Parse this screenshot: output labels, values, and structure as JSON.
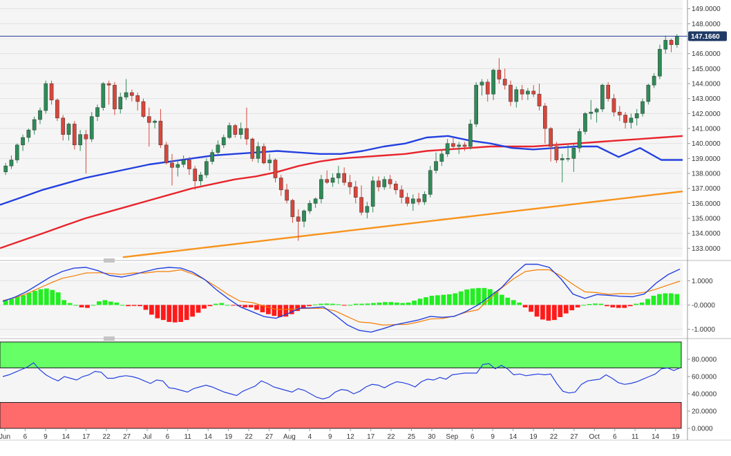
{
  "chart_data": [
    {
      "type": "candlestick",
      "panel": "price",
      "yticks": [
        133,
        134,
        135,
        136,
        137,
        138,
        139,
        140,
        141,
        142,
        143,
        144,
        145,
        146,
        147,
        148,
        149
      ],
      "ytick_labels": [
        "133.0000",
        "134.0000",
        "135.0000",
        "136.0000",
        "137.0000",
        "138.0000",
        "139.0000",
        "140.0000",
        "141.0000",
        "142.0000",
        "143.0000",
        "144.0000",
        "145.0000",
        "146.0000",
        "147.0000",
        "148.0000",
        "149.0000"
      ],
      "ylim": [
        132.6,
        149.4
      ],
      "current_price": 147.166,
      "current_price_label": "147.1660",
      "colors": {
        "up": "#2e8b57",
        "down": "#d9463b",
        "sma_fast": "#2340e0",
        "sma_mid": "#e8242c",
        "sma_slow": "#f7941d",
        "price_line": "#1f3a93"
      },
      "candles": [
        [
          138.1,
          138.7,
          137.9,
          138.5
        ],
        [
          138.5,
          139.2,
          138.3,
          138.9
        ],
        [
          138.9,
          140.0,
          138.7,
          139.9
        ],
        [
          139.9,
          140.6,
          139.5,
          140.4
        ],
        [
          140.4,
          141.0,
          140.1,
          140.9
        ],
        [
          140.9,
          141.8,
          140.6,
          141.6
        ],
        [
          141.6,
          142.4,
          141.3,
          142.2
        ],
        [
          142.2,
          144.2,
          142.0,
          144.0
        ],
        [
          144.0,
          144.2,
          142.6,
          142.9
        ],
        [
          142.9,
          143.0,
          141.5,
          141.7
        ],
        [
          141.7,
          141.9,
          140.2,
          140.6
        ],
        [
          140.6,
          141.4,
          140.2,
          141.3
        ],
        [
          141.3,
          141.5,
          139.6,
          139.9
        ],
        [
          139.9,
          140.9,
          139.5,
          140.6
        ],
        [
          140.6,
          140.9,
          138.0,
          140.3
        ],
        [
          140.3,
          142.1,
          140.1,
          141.8
        ],
        [
          141.8,
          142.6,
          141.5,
          142.4
        ],
        [
          142.4,
          144.1,
          142.2,
          144.0
        ],
        [
          144.0,
          144.2,
          142.6,
          143.9
        ],
        [
          143.9,
          144.1,
          141.9,
          142.3
        ],
        [
          142.3,
          143.4,
          142.0,
          143.1
        ],
        [
          143.1,
          144.3,
          142.9,
          143.4
        ],
        [
          143.4,
          143.6,
          142.8,
          143.2
        ],
        [
          143.2,
          143.4,
          142.2,
          142.8
        ],
        [
          142.8,
          143.0,
          141.7,
          141.8
        ],
        [
          141.8,
          142.4,
          139.8,
          141.4
        ],
        [
          141.4,
          141.6,
          141.0,
          141.5
        ],
        [
          141.5,
          142.3,
          139.7,
          139.9
        ],
        [
          139.9,
          140.1,
          138.6,
          138.7
        ],
        [
          138.7,
          139.3,
          137.2,
          138.4
        ],
        [
          138.4,
          138.9,
          137.8,
          138.6
        ],
        [
          138.6,
          139.2,
          138.4,
          138.9
        ],
        [
          138.9,
          139.1,
          137.9,
          138.3
        ],
        [
          138.3,
          138.5,
          136.9,
          137.5
        ],
        [
          137.5,
          138.1,
          137.2,
          137.9
        ],
        [
          137.9,
          139.0,
          137.7,
          138.8
        ],
        [
          138.8,
          139.6,
          138.6,
          139.4
        ],
        [
          139.4,
          140.2,
          139.2,
          139.9
        ],
        [
          139.9,
          140.6,
          139.7,
          140.4
        ],
        [
          140.4,
          141.4,
          140.3,
          141.2
        ],
        [
          141.2,
          141.3,
          140.4,
          140.6
        ],
        [
          140.6,
          141.4,
          140.3,
          141.0
        ],
        [
          141.0,
          142.4,
          139.9,
          140.3
        ],
        [
          140.3,
          140.4,
          138.8,
          139.0
        ],
        [
          139.0,
          140.1,
          138.7,
          139.8
        ],
        [
          139.8,
          140.0,
          138.6,
          138.7
        ],
        [
          138.7,
          139.3,
          138.2,
          138.9
        ],
        [
          138.9,
          139.0,
          137.4,
          137.7
        ],
        [
          137.7,
          137.9,
          136.5,
          136.9
        ],
        [
          136.9,
          137.3,
          136.0,
          136.2
        ],
        [
          136.2,
          136.3,
          134.7,
          135.1
        ],
        [
          135.1,
          135.6,
          133.5,
          134.8
        ],
        [
          134.8,
          135.6,
          134.4,
          135.5
        ],
        [
          135.5,
          136.2,
          135.3,
          136.0
        ],
        [
          136.0,
          136.4,
          135.7,
          136.3
        ],
        [
          136.3,
          137.9,
          136.0,
          137.6
        ],
        [
          137.6,
          138.2,
          137.3,
          137.4
        ],
        [
          137.4,
          138.0,
          137.1,
          137.7
        ],
        [
          137.7,
          138.5,
          137.3,
          138.0
        ],
        [
          138.0,
          138.4,
          137.2,
          137.4
        ],
        [
          137.4,
          137.9,
          136.6,
          137.1
        ],
        [
          137.1,
          137.5,
          136.0,
          136.4
        ],
        [
          136.4,
          137.2,
          135.2,
          135.4
        ],
        [
          135.4,
          136.1,
          135.0,
          135.8
        ],
        [
          135.8,
          137.8,
          135.4,
          137.5
        ],
        [
          137.5,
          137.8,
          136.8,
          137.1
        ],
        [
          137.1,
          137.8,
          136.9,
          137.6
        ],
        [
          137.6,
          137.9,
          137.0,
          137.3
        ],
        [
          137.3,
          137.5,
          136.6,
          136.9
        ],
        [
          136.9,
          137.2,
          136.0,
          136.4
        ],
        [
          136.4,
          136.7,
          135.8,
          136.0
        ],
        [
          136.0,
          136.6,
          135.5,
          136.3
        ],
        [
          136.3,
          136.7,
          135.9,
          136.1
        ],
        [
          136.1,
          136.8,
          135.9,
          136.6
        ],
        [
          136.6,
          138.5,
          136.4,
          138.2
        ],
        [
          138.2,
          139.4,
          138.0,
          138.8
        ],
        [
          138.8,
          139.6,
          138.5,
          139.3
        ],
        [
          139.3,
          140.3,
          139.1,
          140.0
        ],
        [
          140.0,
          140.4,
          139.6,
          139.8
        ],
        [
          139.8,
          140.1,
          139.3,
          139.9
        ],
        [
          139.9,
          140.1,
          139.5,
          139.8
        ],
        [
          139.8,
          141.6,
          139.6,
          141.3
        ],
        [
          141.3,
          144.1,
          141.1,
          143.9
        ],
        [
          143.9,
          144.3,
          143.2,
          144.1
        ],
        [
          144.1,
          144.3,
          142.8,
          143.3
        ],
        [
          143.3,
          145.0,
          142.9,
          144.9
        ],
        [
          144.9,
          145.7,
          144.0,
          144.3
        ],
        [
          144.3,
          145.0,
          143.6,
          143.9
        ],
        [
          143.9,
          144.2,
          142.5,
          142.8
        ],
        [
          142.8,
          143.8,
          142.4,
          143.6
        ],
        [
          143.6,
          143.9,
          142.9,
          143.3
        ],
        [
          143.3,
          143.7,
          142.9,
          143.5
        ],
        [
          143.5,
          143.9,
          143.1,
          143.3
        ],
        [
          143.3,
          144.0,
          142.2,
          142.5
        ],
        [
          142.5,
          142.7,
          140.0,
          141.0
        ],
        [
          141.0,
          141.1,
          138.8,
          139.8
        ],
        [
          139.8,
          140.1,
          138.7,
          138.9
        ],
        [
          138.9,
          139.3,
          137.4,
          139.0
        ],
        [
          139.0,
          139.9,
          138.8,
          139.0
        ],
        [
          139.0,
          140.0,
          138.1,
          139.7
        ],
        [
          139.7,
          141.0,
          139.4,
          140.8
        ],
        [
          140.8,
          142.1,
          140.6,
          142.0
        ],
        [
          142.0,
          142.9,
          141.6,
          142.1
        ],
        [
          142.1,
          142.4,
          141.4,
          142.3
        ],
        [
          142.3,
          144.0,
          142.1,
          143.9
        ],
        [
          143.9,
          144.1,
          142.8,
          143.0
        ],
        [
          143.0,
          143.3,
          141.8,
          142.1
        ],
        [
          142.1,
          142.5,
          141.5,
          141.9
        ],
        [
          141.9,
          142.1,
          141.0,
          141.4
        ],
        [
          141.4,
          142.0,
          141.0,
          141.7
        ],
        [
          141.7,
          142.3,
          141.2,
          142.0
        ],
        [
          142.0,
          143.0,
          141.8,
          142.8
        ],
        [
          142.8,
          144.0,
          142.6,
          143.9
        ],
        [
          143.9,
          144.7,
          143.7,
          144.5
        ],
        [
          144.5,
          146.6,
          144.3,
          146.3
        ],
        [
          146.3,
          147.2,
          146.0,
          146.9
        ],
        [
          146.9,
          147.0,
          146.1,
          146.6
        ],
        [
          146.6,
          147.3,
          146.4,
          147.166
        ]
      ],
      "sma_fast": [
        135.9,
        136.4,
        136.9,
        137.3,
        137.7,
        138.0,
        138.3,
        138.6,
        138.8,
        139.0,
        139.2,
        139.3,
        139.4,
        139.5,
        139.4,
        139.3,
        139.3,
        139.5,
        139.8,
        140.0,
        140.4,
        140.5,
        140.2,
        140.0,
        139.7,
        139.6,
        139.7,
        139.8,
        139.8,
        139.1,
        139.7,
        138.9,
        138.9
      ],
      "sma_mid": [
        133.0,
        133.5,
        134.0,
        134.5,
        135.0,
        135.4,
        135.8,
        136.2,
        136.6,
        137.0,
        137.3,
        137.6,
        137.8,
        138.1,
        138.5,
        138.8,
        139.0,
        139.1,
        139.2,
        139.3,
        139.5,
        139.6,
        139.7,
        139.8,
        139.8,
        139.8,
        139.9,
        140.0,
        140.1,
        140.2,
        140.3,
        140.4,
        140.5
      ],
      "sma_slow": [
        132.4,
        132.6,
        132.8,
        133.0,
        133.2,
        133.4,
        133.6,
        133.8,
        134.0,
        134.2,
        134.4,
        134.6,
        134.8,
        135.0,
        135.2,
        135.4,
        135.6,
        135.8,
        136.0,
        136.2,
        136.4,
        136.6,
        136.8
      ],
      "dates": [
        "Jun",
        "6",
        "9",
        "14",
        "17",
        "22",
        "27",
        "Jul",
        "6",
        "11",
        "14",
        "19",
        "22",
        "27",
        "Aug",
        "4",
        "9",
        "12",
        "17",
        "22",
        "25",
        "30",
        "Sep",
        "6",
        "9",
        "14",
        "19",
        "22",
        "27",
        "Oct",
        "6",
        "11",
        "14",
        "19"
      ]
    },
    {
      "type": "macd",
      "panel": "macd",
      "yticks": [
        1,
        0,
        -1
      ],
      "ytick_labels": [
        "1.0000",
        "-0.0000",
        "-1.0000"
      ],
      "ylim": [
        -1.3,
        1.75
      ],
      "colors": {
        "hist_up": "#22ee22",
        "hist_down": "#ff1a1a",
        "macd": "#2340e0",
        "signal": "#f57c00"
      },
      "macd": [
        0.15,
        0.32,
        0.55,
        0.85,
        1.15,
        1.38,
        1.52,
        1.55,
        1.42,
        1.22,
        1.15,
        1.25,
        1.38,
        1.5,
        1.55,
        1.52,
        1.35,
        1.05,
        0.62,
        0.25,
        -0.08,
        -0.28,
        -0.48,
        -0.55,
        -0.36,
        -0.13,
        -0.12,
        -0.08,
        -0.43,
        -0.82,
        -1.05,
        -1.12,
        -0.98,
        -0.82,
        -0.72,
        -0.62,
        -0.47,
        -0.51,
        -0.47,
        -0.27,
        0.0,
        0.35,
        0.72,
        1.25,
        1.68,
        1.68,
        1.55,
        1.07,
        0.45,
        0.27,
        0.43,
        0.4,
        0.36,
        0.34,
        0.45,
        0.9,
        1.25,
        1.48
      ],
      "signal": [
        0.18,
        0.3,
        0.46,
        0.68,
        0.9,
        1.1,
        1.2,
        1.32,
        1.33,
        1.3,
        1.26,
        1.32,
        1.32,
        1.38,
        1.38,
        1.45,
        1.28,
        1.05,
        0.75,
        0.42,
        0.15,
        0.1,
        -0.05,
        -0.18,
        -0.18,
        -0.15,
        -0.14,
        -0.14,
        -0.25,
        -0.48,
        -0.7,
        -0.74,
        -0.83,
        -0.81,
        -0.8,
        -0.7,
        -0.58,
        -0.56,
        -0.46,
        -0.3,
        -0.2,
        0.25,
        0.7,
        1.08,
        1.38,
        1.45,
        1.45,
        1.2,
        0.85,
        0.54,
        0.51,
        0.44,
        0.47,
        0.46,
        0.52,
        0.65,
        0.82,
        0.98
      ],
      "histogram": [
        0.2,
        0.25,
        0.35,
        0.4,
        0.5,
        0.58,
        0.65,
        0.68,
        0.62,
        0.52,
        0.2,
        0.08,
        0.0,
        -0.1,
        -0.12,
        0.0,
        0.15,
        0.2,
        0.14,
        0.1,
        0.0,
        -0.05,
        -0.04,
        -0.05,
        -0.2,
        -0.4,
        -0.55,
        -0.62,
        -0.7,
        -0.72,
        -0.7,
        -0.62,
        -0.48,
        -0.32,
        -0.15,
        -0.05,
        0.05,
        0.08,
        0.0,
        -0.02,
        -0.05,
        -0.1,
        -0.1,
        -0.2,
        -0.3,
        -0.38,
        -0.45,
        -0.5,
        -0.48,
        -0.38,
        -0.25,
        -0.15,
        -0.05,
        0.02,
        0.05,
        0.06,
        0.05,
        0.03,
        -0.02,
        0.0,
        0.05,
        0.05,
        0.06,
        0.08,
        0.1,
        0.12,
        0.12,
        0.1,
        0.08,
        0.1,
        0.18,
        0.26,
        0.32,
        0.38,
        0.4,
        0.42,
        0.44,
        0.48,
        0.56,
        0.64,
        0.68,
        0.7,
        0.7,
        0.65,
        0.55,
        0.42,
        0.3,
        0.2,
        0.1,
        -0.1,
        -0.28,
        -0.48,
        -0.6,
        -0.65,
        -0.62,
        -0.5,
        -0.35,
        -0.22,
        -0.1,
        0.0,
        0.04,
        0.06,
        0.05,
        -0.05,
        -0.1,
        -0.12,
        -0.12,
        -0.05,
        0.05,
        0.1,
        0.25,
        0.38,
        0.45,
        0.48,
        0.48,
        0.45
      ]
    },
    {
      "type": "line",
      "panel": "rsi",
      "yticks": [
        80,
        60,
        40,
        20,
        0
      ],
      "ytick_labels": [
        "80.0000",
        "60.0000",
        "40.0000",
        "20.0000",
        "0.0000"
      ],
      "ylim": [
        0,
        100
      ],
      "overbought_zone": [
        70,
        100
      ],
      "oversold_zone": [
        0,
        30
      ],
      "colors": {
        "line": "#2340e0",
        "overbought": "#66ff66",
        "oversold": "#ff6b6b"
      },
      "values": [
        60,
        62,
        65,
        68,
        71,
        76,
        68,
        62,
        58,
        55,
        60,
        58,
        56,
        60,
        62,
        66,
        65,
        58,
        58,
        60,
        61,
        60,
        58,
        55,
        52,
        56,
        55,
        47,
        46,
        44,
        42,
        46,
        48,
        50,
        48,
        45,
        42,
        40,
        38,
        43,
        46,
        49,
        55,
        52,
        48,
        46,
        44,
        42,
        46,
        44,
        40,
        36,
        34,
        36,
        42,
        45,
        44,
        40,
        43,
        48,
        51,
        50,
        47,
        51,
        54,
        53,
        51,
        48,
        54,
        57,
        56,
        59,
        57,
        62,
        63,
        64,
        64,
        64,
        74,
        75,
        69,
        73,
        69,
        62,
        63,
        61,
        62,
        63,
        62,
        63,
        52,
        43,
        41,
        42,
        51,
        55,
        56,
        57,
        62,
        58,
        53,
        51,
        52,
        54,
        57,
        60,
        63,
        69,
        70,
        67,
        70
      ]
    }
  ]
}
